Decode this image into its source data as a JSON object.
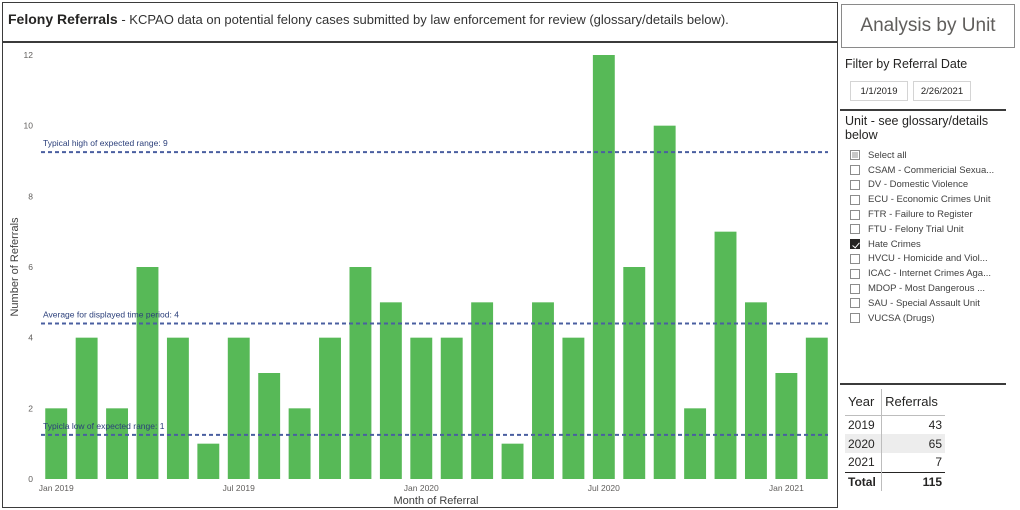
{
  "title": {
    "bold": "Felony Referrals",
    "rest": " - KCPAO data on potential felony cases submitted by law enforcement for review (glossary/details below)."
  },
  "chart_data": {
    "type": "bar",
    "xlabel": "Month of Referral",
    "ylabel": "Number of Referrals",
    "ylim": [
      0,
      12
    ],
    "yticks": [
      0,
      2,
      4,
      6,
      8,
      10,
      12
    ],
    "xtick_labels": [
      {
        "index": 0,
        "label": "Jan 2019"
      },
      {
        "index": 6,
        "label": "Jul 2019"
      },
      {
        "index": 12,
        "label": "Jan 2020"
      },
      {
        "index": 18,
        "label": "Jul 2020"
      },
      {
        "index": 24,
        "label": "Jan 2021"
      }
    ],
    "categories": [
      "2019-01",
      "2019-02",
      "2019-03",
      "2019-04",
      "2019-05",
      "2019-06",
      "2019-07",
      "2019-08",
      "2019-09",
      "2019-10",
      "2019-11",
      "2019-12",
      "2020-01",
      "2020-02",
      "2020-03",
      "2020-04",
      "2020-05",
      "2020-06",
      "2020-07",
      "2020-08",
      "2020-09",
      "2020-10",
      "2020-11",
      "2020-12",
      "2021-01",
      "2021-02"
    ],
    "values": [
      2,
      4,
      2,
      6,
      4,
      1,
      4,
      3,
      2,
      4,
      6,
      5,
      4,
      4,
      5,
      1,
      5,
      4,
      12,
      6,
      10,
      2,
      7,
      5,
      3,
      4
    ],
    "bar_color": "#57b957",
    "reference_lines": [
      {
        "label": "Typical high of expected range: 9",
        "value": 9.25
      },
      {
        "label": "Average for displayed time period: 4",
        "value": 4.4
      },
      {
        "label": "Typicla low of expected range: 1",
        "value": 1.25
      }
    ],
    "reference_line_color": "#4a5fa0",
    "grid": false
  },
  "sidebar": {
    "analysis_label": "Analysis by Unit",
    "filter_title": "Filter by Referral Date",
    "date_start": "1/1/2019",
    "date_end": "2/26/2021",
    "unit_title": "Unit - see glossary/details below",
    "units": [
      {
        "label": "Select all",
        "state": "partial"
      },
      {
        "label": "CSAM - Commericial Sexua...",
        "state": "unchecked"
      },
      {
        "label": "DV - Domestic Violence",
        "state": "unchecked"
      },
      {
        "label": "ECU - Economic Crimes Unit",
        "state": "unchecked"
      },
      {
        "label": "FTR - Failure to Register",
        "state": "unchecked"
      },
      {
        "label": "FTU - Felony Trial Unit",
        "state": "unchecked"
      },
      {
        "label": "Hate Crimes",
        "state": "checked"
      },
      {
        "label": "HVCU - Homicide and Viol...",
        "state": "unchecked"
      },
      {
        "label": "ICAC - Internet Crimes Aga...",
        "state": "unchecked"
      },
      {
        "label": "MDOP - Most Dangerous ...",
        "state": "unchecked"
      },
      {
        "label": "SAU - Special Assault Unit",
        "state": "unchecked"
      },
      {
        "label": "VUCSA (Drugs)",
        "state": "unchecked"
      }
    ]
  },
  "table": {
    "headers": [
      "Year",
      "Referrals"
    ],
    "rows": [
      {
        "year": "2019",
        "referrals": "43"
      },
      {
        "year": "2020",
        "referrals": "65"
      },
      {
        "year": "2021",
        "referrals": "7"
      }
    ],
    "total_label": "Total",
    "total_value": "115"
  }
}
